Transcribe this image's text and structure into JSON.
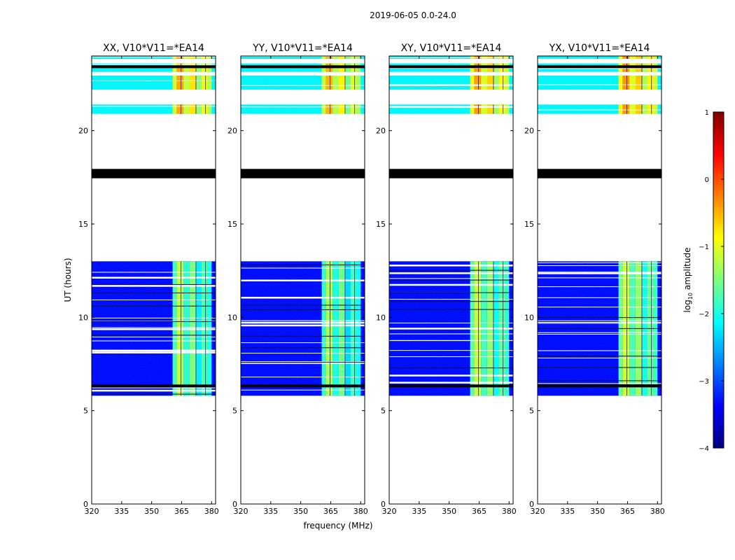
{
  "figure": {
    "suptitle": "2019-06-05 0.0-24.0",
    "xlabel": "frequency (MHz)",
    "ylabel": "UT (hours)"
  },
  "chart_data": {
    "type": "heatmap",
    "title": "2019-06-05 0.0-24.0",
    "xlabel": "frequency (MHz)",
    "ylabel": "UT (hours)",
    "xlim": [
      320,
      382
    ],
    "ylim": [
      0,
      24
    ],
    "xticks": [
      320,
      335,
      350,
      365,
      380
    ],
    "yticks": [
      0,
      5,
      10,
      15,
      20
    ],
    "panels": [
      {
        "title": "XX, V10*V11=*EA14",
        "rfi_strength": 1.0
      },
      {
        "title": "YY, V10*V11=*EA14",
        "rfi_strength": 1.05
      },
      {
        "title": "XY, V10*V11=*EA14",
        "rfi_strength": 0.95
      },
      {
        "title": "YX, V10*V11=*EA14",
        "rfi_strength": 0.92
      }
    ],
    "data_blocks_ut": [
      [
        5.8,
        13.0
      ],
      [
        20.9,
        21.4
      ],
      [
        22.2,
        22.95
      ],
      [
        23.15,
        23.6
      ],
      [
        23.85,
        24.0
      ]
    ],
    "flag_bands_ut": [
      [
        17.45,
        17.95
      ],
      [
        6.25,
        6.4
      ],
      [
        23.35,
        23.5
      ]
    ],
    "rfi_band_mhz": [
      360.5,
      380.0
    ],
    "rfi_band_levels": [
      {
        "start": 360.5,
        "end": 362.5,
        "level": -1.8
      },
      {
        "start": 362.5,
        "end": 366.0,
        "level": -1.2
      },
      {
        "start": 366.0,
        "end": 369.0,
        "level": -1.9
      },
      {
        "start": 369.0,
        "end": 372.5,
        "level": -1.5
      },
      {
        "start": 372.5,
        "end": 375.0,
        "level": -2.2
      },
      {
        "start": 375.0,
        "end": 378.0,
        "level": -1.7
      },
      {
        "start": 378.0,
        "end": 380.0,
        "level": -2.0
      }
    ],
    "colorbar": {
      "label": "log10 amplitude",
      "label_main": "log",
      "label_sub": "10",
      "label_rest": " amplitude",
      "range": [
        -4,
        1
      ],
      "ticks": [
        1,
        0,
        -1,
        -2,
        -3,
        -4
      ],
      "tick_labels": [
        "1",
        "0",
        "−1",
        "−2",
        "−3",
        "−4"
      ],
      "colormap": "jet"
    }
  },
  "colors": {
    "background": "#ffffff",
    "axes": "#000000",
    "flag": "#000000"
  }
}
